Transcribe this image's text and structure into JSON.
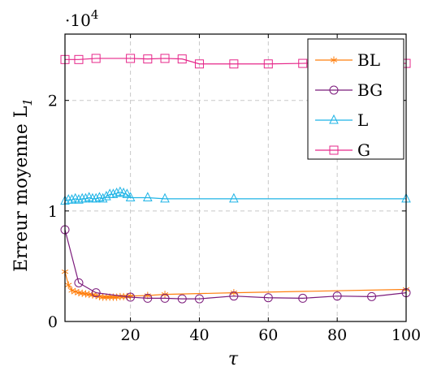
{
  "chart_data": {
    "type": "line",
    "xlabel": "τ",
    "ylabel": "Erreur moyenne L",
    "ylabel_sub": "1",
    "y_scale_note": {
      "base": "·10",
      "exponent": "4"
    },
    "xlim": [
      1,
      100
    ],
    "ylim": [
      0,
      2.6
    ],
    "x_ticks": [
      20,
      40,
      60,
      80,
      100
    ],
    "x_tick_labels": [
      "20",
      "40",
      "60",
      "80",
      "100"
    ],
    "y_ticks": [
      0,
      1,
      2
    ],
    "y_tick_labels": [
      "0",
      "1",
      "2"
    ],
    "grid": true,
    "legend_position": "top-right",
    "series": [
      {
        "name": "BL",
        "color": "#ff7f0e",
        "marker": "asterisk",
        "x": [
          1,
          2,
          3,
          4,
          5,
          6,
          7,
          8,
          9,
          10,
          11,
          12,
          13,
          14,
          15,
          16,
          17,
          18,
          19,
          20,
          25,
          30,
          50,
          100
        ],
        "y": [
          0.45,
          0.33,
          0.28,
          0.27,
          0.26,
          0.255,
          0.25,
          0.245,
          0.24,
          0.235,
          0.225,
          0.22,
          0.22,
          0.22,
          0.22,
          0.22,
          0.225,
          0.225,
          0.225,
          0.23,
          0.235,
          0.245,
          0.26,
          0.29
        ]
      },
      {
        "name": "BG",
        "color": "#7b1a7b",
        "marker": "circle",
        "x": [
          1,
          5,
          10,
          20,
          25,
          30,
          35,
          40,
          50,
          60,
          70,
          80,
          90,
          100
        ],
        "y": [
          0.83,
          0.35,
          0.26,
          0.22,
          0.21,
          0.21,
          0.205,
          0.205,
          0.23,
          0.215,
          0.21,
          0.23,
          0.225,
          0.26
        ]
      },
      {
        "name": "L",
        "color": "#1fb4e6",
        "marker": "triangle",
        "x": [
          1,
          2,
          3,
          4,
          5,
          6,
          7,
          8,
          9,
          10,
          11,
          12,
          13,
          14,
          15,
          16,
          17,
          18,
          19,
          20,
          25,
          30,
          50,
          100
        ],
        "y": [
          1.09,
          1.1,
          1.1,
          1.11,
          1.1,
          1.11,
          1.11,
          1.12,
          1.11,
          1.11,
          1.12,
          1.11,
          1.13,
          1.15,
          1.15,
          1.16,
          1.17,
          1.16,
          1.15,
          1.12,
          1.12,
          1.11,
          1.11,
          1.11
        ]
      },
      {
        "name": "G",
        "color": "#e6278a",
        "marker": "square",
        "x": [
          1,
          5,
          10,
          20,
          25,
          30,
          35,
          40,
          50,
          60,
          70,
          80,
          90,
          100
        ],
        "y": [
          2.37,
          2.37,
          2.38,
          2.38,
          2.375,
          2.38,
          2.375,
          2.33,
          2.33,
          2.33,
          2.335,
          2.345,
          2.34,
          2.335
        ]
      }
    ]
  }
}
